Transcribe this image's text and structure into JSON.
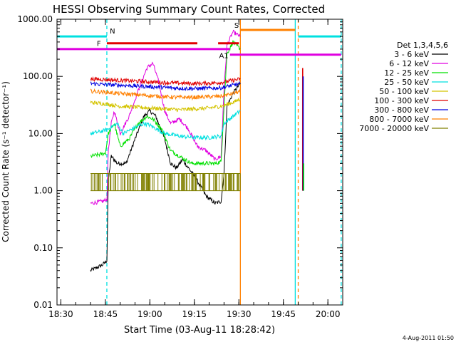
{
  "chart_data": {
    "type": "line",
    "title": "HESSI Observing Summary Count Rates, Corrected",
    "xlabel": "Start Time (03-Aug-11 18:28:42)",
    "ylabel": "Corrected Count Rate (s⁻¹ detector⁻¹)",
    "yscale": "log",
    "ylim": [
      0.01,
      1000
    ],
    "xlim": [
      "18:28:42",
      "20:05:00"
    ],
    "xticks": [
      "18:30",
      "18:45",
      "19:00",
      "19:15",
      "19:30",
      "19:45",
      "20:00"
    ],
    "yticks": [
      "0.01",
      "0.10",
      "1.00",
      "10.00",
      "100.00",
      "1000.00"
    ],
    "timestamp": "4-Aug-2011 01:50",
    "legend": {
      "position": "right",
      "title": "Det 1,3,4,5,6",
      "entries": [
        {
          "label": "3 - 6 keV",
          "color": "#000000"
        },
        {
          "label": "6 - 12 keV",
          "color": "#e000e0"
        },
        {
          "label": "12 - 25 keV",
          "color": "#00e000"
        },
        {
          "label": "25 - 50 keV",
          "color": "#00e0e0"
        },
        {
          "label": "50 - 100 keV",
          "color": "#d4c400"
        },
        {
          "label": "100 - 300 keV",
          "color": "#e00000"
        },
        {
          "label": "300 - 800 keV",
          "color": "#0000e0"
        },
        {
          "label": "800 - 7000 keV",
          "color": "#ff8000"
        },
        {
          "label": "7000 - 20000 keV",
          "color": "#808000"
        }
      ]
    },
    "flags": [
      {
        "label": "N",
        "color": "#00e0e0",
        "value": 500,
        "segments": [
          [
            "18:28:42",
            "18:45:30"
          ],
          [
            "19:50:00",
            "20:04:30"
          ]
        ]
      },
      {
        "label": "F",
        "color": "#e00000",
        "value": 380,
        "segments": [
          [
            "18:45:30",
            "19:16:00"
          ],
          [
            "19:23:00",
            "19:30:00"
          ]
        ]
      },
      {
        "label": "A1",
        "color": "#e000e0",
        "value": 300,
        "segments": [
          [
            "18:28:42",
            "19:27:00"
          ]
        ]
      },
      {
        "label": "A1",
        "color": "#e000e0",
        "value": 240,
        "segments": [
          [
            "19:27:00",
            "20:04:30"
          ]
        ]
      },
      {
        "label": "S",
        "color": "#ff8000",
        "value": 650,
        "segments": [
          [
            "19:30:30",
            "19:49:00"
          ]
        ]
      }
    ],
    "vlines": [
      {
        "time": "18:45:30",
        "color": "#00e0e0",
        "style": "dashed"
      },
      {
        "time": "19:30:30",
        "color": "#ff8000",
        "style": "solid"
      },
      {
        "time": "19:49:00",
        "color": "#00e0e0",
        "style": "solid"
      },
      {
        "time": "19:50:00",
        "color": "#ff8000",
        "style": "dashed"
      },
      {
        "time": "20:04:30",
        "color": "#00e0e0",
        "style": "dashed"
      }
    ],
    "series": [
      {
        "name": "3 - 6 keV",
        "color": "#000000",
        "points": [
          [
            "18:40",
            0.04
          ],
          [
            "18:44",
            0.05
          ],
          [
            "18:45:30",
            0.06
          ],
          [
            "18:46",
            1.5
          ],
          [
            "18:47",
            4
          ],
          [
            "18:49",
            3
          ],
          [
            "18:52",
            3
          ],
          [
            "18:55",
            8
          ],
          [
            "18:58",
            20
          ],
          [
            "19:00",
            25
          ],
          [
            "19:02",
            20
          ],
          [
            "19:05",
            8
          ],
          [
            "19:07",
            3
          ],
          [
            "19:09",
            2.5
          ],
          [
            "19:11",
            3.5
          ],
          [
            "19:13",
            2.5
          ],
          [
            "19:15",
            1.8
          ],
          [
            "19:17",
            1.2
          ],
          [
            "19:19",
            0.8
          ],
          [
            "19:22",
            0.6
          ],
          [
            "19:24",
            0.65
          ],
          [
            "19:25",
            2
          ],
          [
            "19:26",
            30
          ],
          [
            "19:28",
            50
          ],
          [
            "19:30",
            70
          ],
          [
            "19:30:30",
            75
          ]
        ]
      },
      {
        "name": "6 - 12 keV",
        "color": "#e000e0",
        "points": [
          [
            "18:40",
            0.6
          ],
          [
            "18:44",
            0.65
          ],
          [
            "18:45:30",
            0.7
          ],
          [
            "18:46",
            5
          ],
          [
            "18:47",
            15
          ],
          [
            "18:48",
            25
          ],
          [
            "18:50",
            10
          ],
          [
            "18:53",
            20
          ],
          [
            "18:56",
            55
          ],
          [
            "18:59",
            140
          ],
          [
            "19:01",
            170
          ],
          [
            "19:03",
            80
          ],
          [
            "19:05",
            25
          ],
          [
            "19:07",
            15
          ],
          [
            "19:10",
            18
          ],
          [
            "19:13",
            12
          ],
          [
            "19:16",
            6
          ],
          [
            "19:19",
            5
          ],
          [
            "19:22",
            3.5
          ],
          [
            "19:24",
            4
          ],
          [
            "19:25",
            60
          ],
          [
            "19:26",
            350
          ],
          [
            "19:28",
            600
          ],
          [
            "19:30:30",
            500
          ]
        ]
      },
      {
        "name": "12 - 25 keV",
        "color": "#00e000",
        "points": [
          [
            "18:40",
            4
          ],
          [
            "18:45",
            4.5
          ],
          [
            "18:46",
            10
          ],
          [
            "18:48",
            15
          ],
          [
            "18:50",
            6
          ],
          [
            "18:53",
            8
          ],
          [
            "18:56",
            15
          ],
          [
            "18:59",
            20
          ],
          [
            "19:01",
            18
          ],
          [
            "19:04",
            12
          ],
          [
            "19:07",
            5
          ],
          [
            "19:10",
            4
          ],
          [
            "19:14",
            3
          ],
          [
            "19:18",
            3
          ],
          [
            "19:22",
            3
          ],
          [
            "19:24",
            3.2
          ],
          [
            "19:25",
            30
          ],
          [
            "19:26",
            250
          ],
          [
            "19:28",
            400
          ],
          [
            "19:30:30",
            300
          ]
        ]
      },
      {
        "name": "25 - 50 keV",
        "color": "#00e0e0",
        "points": [
          [
            "18:40",
            10
          ],
          [
            "18:44",
            11
          ],
          [
            "18:46",
            12
          ],
          [
            "18:49",
            15
          ],
          [
            "18:51",
            10
          ],
          [
            "18:54",
            12
          ],
          [
            "18:58",
            15
          ],
          [
            "19:00",
            14
          ],
          [
            "19:05",
            10
          ],
          [
            "19:10",
            9
          ],
          [
            "19:15",
            8.5
          ],
          [
            "19:20",
            8.5
          ],
          [
            "19:24",
            9
          ],
          [
            "19:25",
            15
          ],
          [
            "19:28",
            20
          ],
          [
            "19:30:30",
            25
          ]
        ]
      },
      {
        "name": "50 - 100 keV",
        "color": "#d4c400",
        "points": [
          [
            "18:40",
            35
          ],
          [
            "18:45",
            33
          ],
          [
            "18:50",
            30
          ],
          [
            "18:55",
            29
          ],
          [
            "19:00",
            28
          ],
          [
            "19:05",
            27
          ],
          [
            "19:10",
            26
          ],
          [
            "19:15",
            27
          ],
          [
            "19:20",
            28
          ],
          [
            "19:24",
            30
          ],
          [
            "19:28",
            35
          ],
          [
            "19:30:30",
            40
          ]
        ]
      },
      {
        "name": "100 - 300 keV",
        "color": "#e00000",
        "points": [
          [
            "18:40",
            90
          ],
          [
            "18:45",
            88
          ],
          [
            "18:50",
            85
          ],
          [
            "18:55",
            83
          ],
          [
            "19:00",
            80
          ],
          [
            "19:05",
            78
          ],
          [
            "19:10",
            76
          ],
          [
            "19:15",
            75
          ],
          [
            "19:20",
            76
          ],
          [
            "19:24",
            78
          ],
          [
            "19:28",
            85
          ],
          [
            "19:30:30",
            90
          ]
        ]
      },
      {
        "name": "300 - 800 keV",
        "color": "#0000e0",
        "points": [
          [
            "18:40",
            75
          ],
          [
            "18:45",
            72
          ],
          [
            "18:50",
            70
          ],
          [
            "18:55",
            68
          ],
          [
            "19:00",
            66
          ],
          [
            "19:05",
            64
          ],
          [
            "19:10",
            62
          ],
          [
            "19:15",
            61
          ],
          [
            "19:20",
            62
          ],
          [
            "19:24",
            63
          ],
          [
            "19:28",
            70
          ],
          [
            "19:30:30",
            75
          ]
        ]
      },
      {
        "name": "800 - 7000 keV",
        "color": "#ff8000",
        "points": [
          [
            "18:40",
            55
          ],
          [
            "18:45",
            53
          ],
          [
            "18:50",
            50
          ],
          [
            "18:55",
            48
          ],
          [
            "19:00",
            46
          ],
          [
            "19:05",
            44
          ],
          [
            "19:10",
            43
          ],
          [
            "19:15",
            43
          ],
          [
            "19:20",
            44
          ],
          [
            "19:24",
            45
          ],
          [
            "19:28",
            50
          ],
          [
            "19:30:30",
            55
          ]
        ]
      },
      {
        "name": "7000 - 20000 keV",
        "color": "#808000",
        "band": [
          1.0,
          2.0
        ],
        "points": [
          [
            "18:40",
            1.0
          ],
          [
            "19:30:30",
            2.0
          ]
        ]
      }
    ],
    "burst_after": {
      "time": "19:51:30",
      "peaks": [
        {
          "color": "#e00000",
          "value": 140
        },
        {
          "color": "#0000e0",
          "value": 100
        },
        {
          "color": "#00e000",
          "value": 3
        },
        {
          "color": "#808000",
          "value": 1.0
        }
      ]
    }
  }
}
